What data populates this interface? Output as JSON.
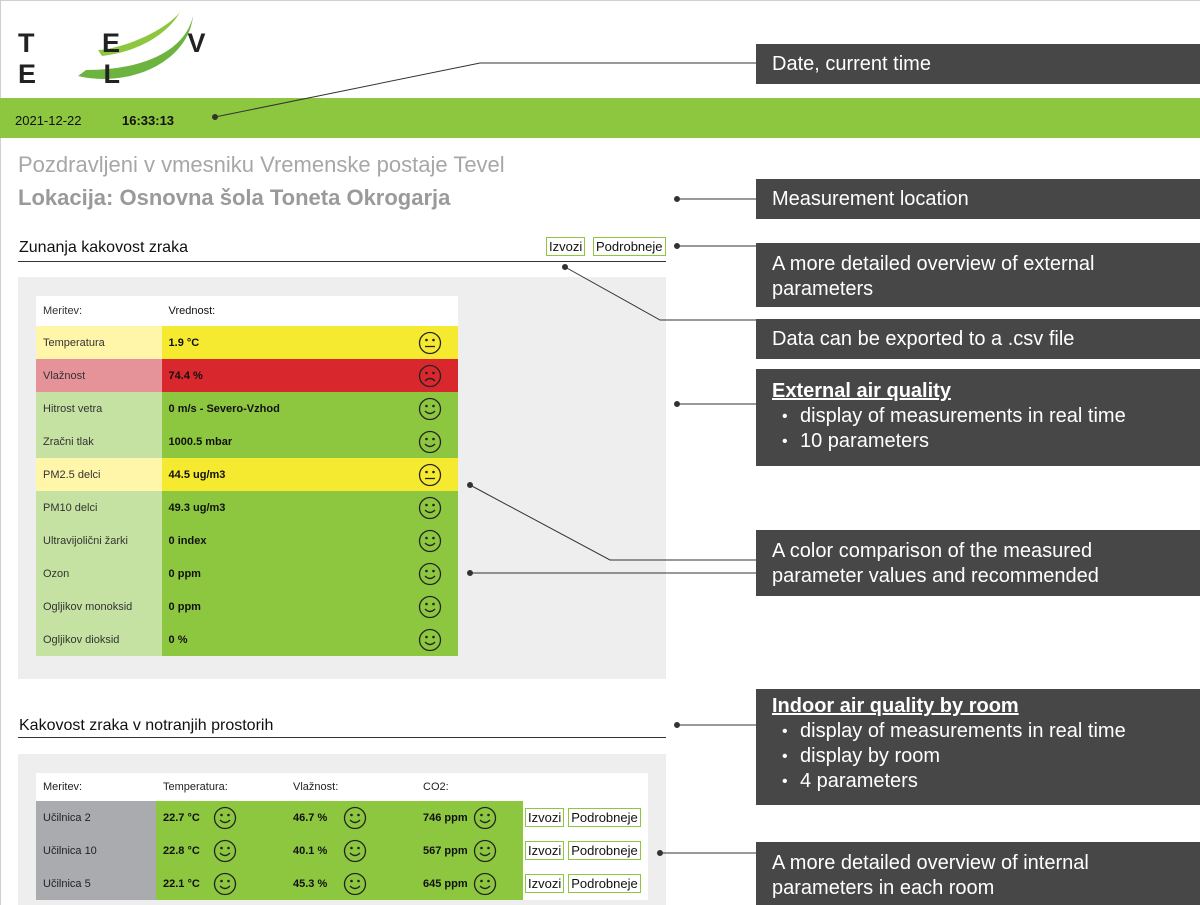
{
  "logo": {
    "text": "TEVEL"
  },
  "header": {
    "date": "2021-12-22",
    "time": "16:33:13"
  },
  "welcome": "Pozdravljeni v vmesniku Vremenske postaje Tevel",
  "location": "Lokacija: Osnovna šola Toneta Okrogarja",
  "external": {
    "title": "Zunanja kakovost zraka",
    "export_label": "Izvozi",
    "details_label": "Podrobneje",
    "col_measure": "Meritev:",
    "col_value": "Vrednost:",
    "rows": [
      {
        "name": "Temperatura",
        "value": "1.9 °C",
        "status": "neutral"
      },
      {
        "name": "Vlažnost",
        "value": "74.4 %",
        "status": "bad"
      },
      {
        "name": "Hitrost vetra",
        "value": "0 m/s - Severo-Vzhod",
        "status": "good"
      },
      {
        "name": "Zračni tlak",
        "value": "1000.5 mbar",
        "status": "good"
      },
      {
        "name": "PM2.5 delci",
        "value": "44.5 ug/m3",
        "status": "neutral"
      },
      {
        "name": "PM10 delci",
        "value": "49.3 ug/m3",
        "status": "good"
      },
      {
        "name": "Ultravijolični žarki",
        "value": "0 index",
        "status": "good"
      },
      {
        "name": "Ozon",
        "value": "0 ppm",
        "status": "good"
      },
      {
        "name": "Ogljikov monoksid",
        "value": "0 ppm",
        "status": "good"
      },
      {
        "name": "Ogljikov dioksid",
        "value": "0 %",
        "status": "good"
      }
    ]
  },
  "indoor": {
    "title": "Kakovost zraka v notranjih prostorih",
    "col_measure": "Meritev:",
    "col_temp": "Temperatura:",
    "col_hum": "Vlažnost:",
    "col_co2": "CO2:",
    "export_label": "Izvozi",
    "details_label": "Podrobneje",
    "rooms": [
      {
        "name": "Učilnica 2",
        "temp": "22.7 °C",
        "hum": "46.7 %",
        "co2": "746 ppm"
      },
      {
        "name": "Učilnica 10",
        "temp": "22.8 °C",
        "hum": "40.1 %",
        "co2": "567 ppm"
      },
      {
        "name": "Učilnica 5",
        "temp": "22.1 °C",
        "hum": "45.3 %",
        "co2": "645 ppm"
      }
    ]
  },
  "annotations": {
    "date_time": "Date, current time",
    "location": "Measurement location",
    "details_external": "A more detailed overview of external parameters",
    "export_csv": "Data can be exported to a .csv file",
    "external_title": "External air quality",
    "external_bullets": [
      "display of measurements in real time",
      "10 parameters"
    ],
    "color_comparison": "A color comparison of the measured parameter values and recommended",
    "indoor_title": "Indoor air quality by room",
    "indoor_bullets": [
      "display of measurements in real time",
      "display by room",
      "4 parameters"
    ],
    "details_internal": "A more detailed overview of internal parameters in each room"
  },
  "colors": {
    "green_bar": "#8dc63f",
    "good": "#8dc63f",
    "neutral": "#f5ea30",
    "bad": "#d8272d",
    "annotation_bg": "#474747"
  }
}
